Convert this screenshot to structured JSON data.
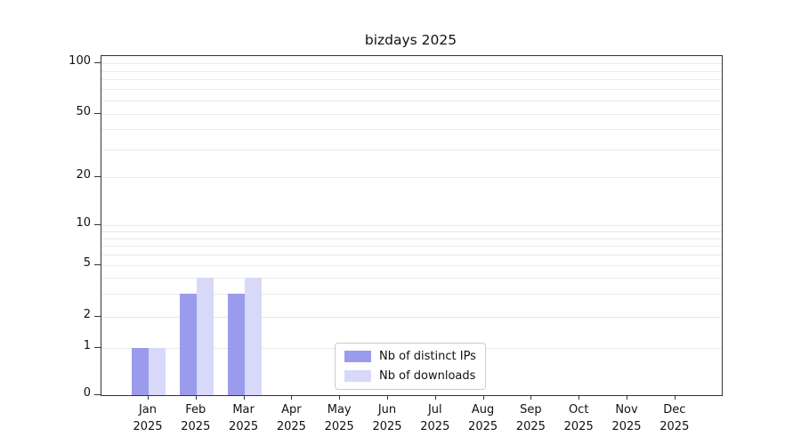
{
  "chart_data": {
    "type": "bar",
    "title": "bizdays 2025",
    "year": "2025",
    "categories": [
      "Jan",
      "Feb",
      "Mar",
      "Apr",
      "May",
      "Jun",
      "Jul",
      "Aug",
      "Sep",
      "Oct",
      "Nov",
      "Dec"
    ],
    "series": [
      {
        "name": "Nb of distinct IPs",
        "color": "#9b9bee",
        "values": [
          1,
          3,
          3,
          0,
          0,
          0,
          0,
          0,
          0,
          0,
          0,
          0
        ]
      },
      {
        "name": "Nb of downloads",
        "color": "#d8d8f8",
        "values": [
          1,
          4,
          4,
          0,
          0,
          0,
          0,
          0,
          0,
          0,
          0,
          0
        ]
      }
    ],
    "y_ticks": [
      0,
      1,
      2,
      5,
      10,
      20,
      50,
      100
    ],
    "ylim": [
      0,
      100
    ],
    "y_scale": "log above 1, 0 shown at baseline",
    "grid": "horizontal log minor gridlines, light gray",
    "legend_position": "bottom-center inside plot",
    "colors": {
      "axis": "#333333",
      "gridline": "#e9e9e9",
      "text": "#111111"
    }
  }
}
